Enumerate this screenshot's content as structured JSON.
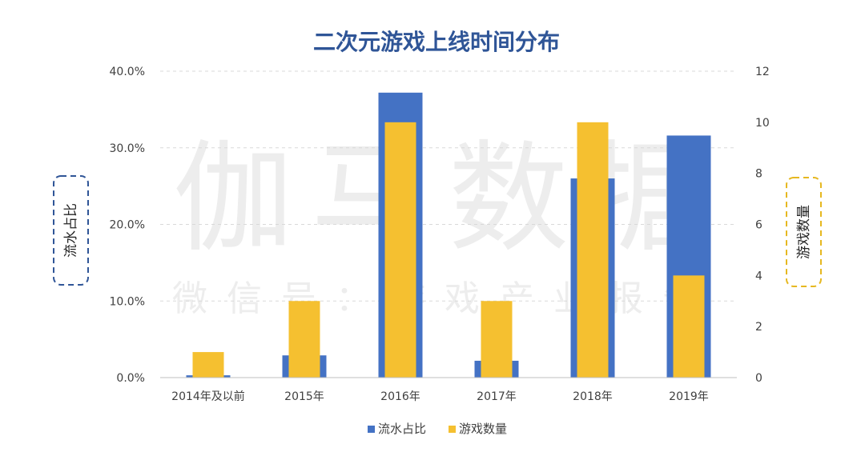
{
  "chart_data": {
    "type": "bar",
    "title": "二次元游戏上线时间分布",
    "categories": [
      "2014年及以前",
      "2015年",
      "2016年",
      "2017年",
      "2018年",
      "2019年"
    ],
    "series": [
      {
        "name": "流水占比",
        "axis": "left",
        "values": [
          0.3,
          2.9,
          37.2,
          2.2,
          26.0,
          31.6
        ]
      },
      {
        "name": "游戏数量",
        "axis": "right",
        "values": [
          1,
          3,
          10,
          3,
          10,
          4
        ]
      }
    ],
    "ylabel": "流水占比",
    "ylabel_right": "游戏数量",
    "ylim": [
      0,
      40
    ],
    "ylim_right": [
      0,
      12
    ],
    "yticks": [
      "0.0%",
      "10.0%",
      "20.0%",
      "30.0%",
      "40.0%"
    ],
    "yticks_right": [
      "0",
      "2",
      "4",
      "6",
      "8",
      "10",
      "12"
    ],
    "grid": true,
    "legend": "bottom",
    "watermark_main": "伽马数据",
    "watermark_sub": "微信号：游戏产业报告",
    "colors": {
      "title": "#2f5597",
      "share": "#4472c4",
      "count": "#f5c030",
      "left_frame": "#2f5597",
      "right_frame": "#e6b820",
      "grid": "#d9d9d9",
      "text": "#404040",
      "watermark": "#ededed"
    }
  }
}
